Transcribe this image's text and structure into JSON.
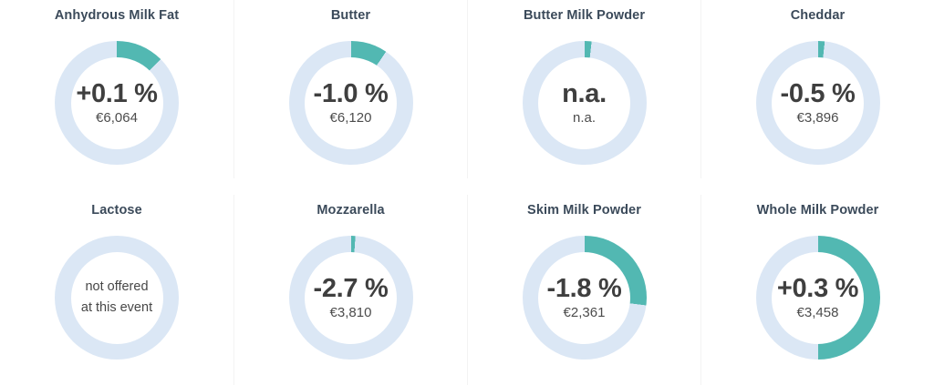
{
  "colors": {
    "arc_accent": "#52b8b2",
    "arc_track": "#dbe7f5",
    "title_text": "#3b4a5a",
    "value_text": "#3f3f3f",
    "divider": "#f3f3f3",
    "background": "#ffffff"
  },
  "chart_data": {
    "type": "pie",
    "subtype": "donut-kpi-grid",
    "layout": "2 rows x 4 columns of donut gauges, arcs start at 12 o'clock clockwise",
    "items": [
      {
        "label": "Anhydrous Milk Fat",
        "change": "+0.1 %",
        "price": "€6,064",
        "ring_fill_fraction": 0.125
      },
      {
        "label": "Butter",
        "change": "-1.0 %",
        "price": "€6,120",
        "ring_fill_fraction": 0.095
      },
      {
        "label": "Butter Milk Powder",
        "change": "n.a.",
        "price": "n.a.",
        "ring_fill_fraction": 0.018
      },
      {
        "label": "Cheddar",
        "change": "-0.5 %",
        "price": "€3,896",
        "ring_fill_fraction": 0.017
      },
      {
        "label": "Lactose",
        "change": "",
        "price": "",
        "ring_fill_fraction": 0,
        "note_lines": [
          "not offered",
          "at this event"
        ]
      },
      {
        "label": "Mozzarella",
        "change": "-2.7 %",
        "price": "€3,810",
        "ring_fill_fraction": 0.011
      },
      {
        "label": "Skim Milk Powder",
        "change": "-1.8 %",
        "price": "€2,361",
        "ring_fill_fraction": 0.27
      },
      {
        "label": "Whole Milk Powder",
        "change": "+0.3 %",
        "price": "€3,458",
        "ring_fill_fraction": 0.5
      }
    ]
  }
}
